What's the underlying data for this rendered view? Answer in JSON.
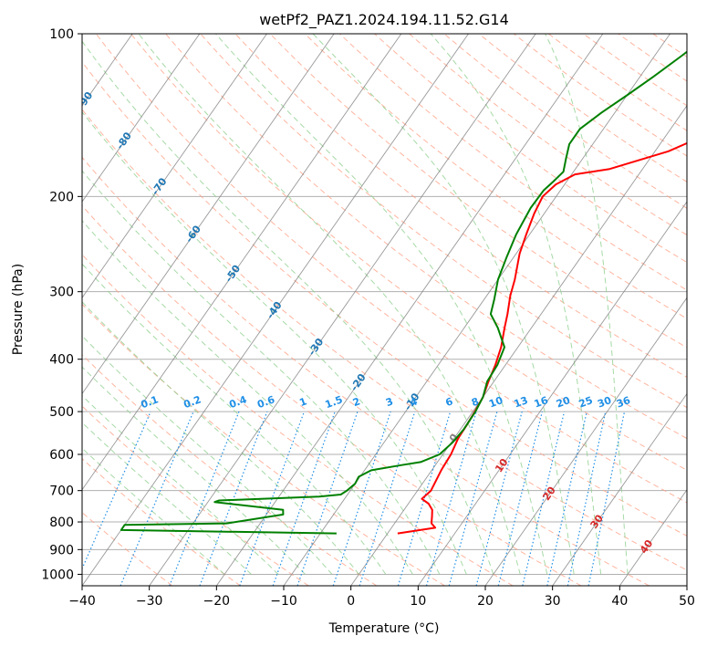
{
  "chart_data": {
    "type": "line",
    "title": "wetPf2_PAZ1.2024.194.11.52.G14",
    "xlabel": "Temperature (°C)",
    "ylabel": "Pressure (hPa)",
    "xlim": [
      -40,
      50
    ],
    "ylim": [
      1050,
      100
    ],
    "y_scale": "log",
    "x_ticks": [
      "−40",
      "−30",
      "−20",
      "−10",
      "0",
      "10",
      "20",
      "30",
      "40",
      "50"
    ],
    "y_ticks": [
      "100",
      "200",
      "300",
      "400",
      "500",
      "600",
      "700",
      "800",
      "900",
      "1000"
    ],
    "grid": true,
    "skew_background": true,
    "colors": {
      "temperature": "#ff0000",
      "dewpoint": "#008000",
      "isotherm": "#808080",
      "dry_adiabat": "#ff9c80",
      "moist_adiabat": "#90d090",
      "mixing_ratio": "#1f8fe6",
      "label_blue": "#1f77b4",
      "label_red": "#d62728"
    },
    "isotherm_labels": [
      "-100",
      "-90",
      "-80",
      "-70",
      "-60",
      "-50",
      "-40",
      "-30",
      "-20",
      "-10",
      "0",
      "10",
      "20",
      "30",
      "40"
    ],
    "mixing_ratio_labels": [
      "0.1",
      "0.2",
      "0.4",
      "0.6",
      "1",
      "1.5",
      "2",
      "3",
      "4",
      "6",
      "8",
      "10",
      "13",
      "16",
      "20",
      "25",
      "30",
      "36"
    ],
    "series": [
      {
        "key": "temperature",
        "points": [
          [
            1.5,
            840
          ],
          [
            6.5,
            820
          ],
          [
            5.5,
            805
          ],
          [
            4.8,
            780
          ],
          [
            4.2,
            760
          ],
          [
            3.0,
            740
          ],
          [
            1.5,
            725
          ],
          [
            2.0,
            700
          ],
          [
            1.8,
            680
          ],
          [
            1.4,
            640
          ],
          [
            1.2,
            600
          ],
          [
            0.6,
            560
          ],
          [
            0.5,
            530
          ],
          [
            0.3,
            500
          ],
          [
            0,
            470
          ],
          [
            -0.8,
            440
          ],
          [
            -1.5,
            410
          ],
          [
            -2.5,
            380
          ],
          [
            -4.0,
            350
          ],
          [
            -5.0,
            330
          ],
          [
            -6.5,
            305
          ],
          [
            -7.5,
            285
          ],
          [
            -9.5,
            255
          ],
          [
            -10.5,
            235
          ],
          [
            -11.5,
            215
          ],
          [
            -12.0,
            200
          ],
          [
            -11.3,
            190
          ],
          [
            -9.5,
            182
          ],
          [
            -5.0,
            178
          ],
          [
            2.0,
            165
          ],
          [
            8.0,
            148
          ],
          [
            11.5,
            135
          ],
          [
            14.5,
            120
          ],
          [
            16.0,
            110
          ],
          [
            16.5,
            105
          ],
          [
            16.5,
            100
          ]
        ]
      },
      {
        "key": "dewpoint",
        "points": [
          [
            -7.6,
            840
          ],
          [
            -40,
            828
          ],
          [
            -40,
            810
          ],
          [
            -25,
            805
          ],
          [
            -17.5,
            775
          ],
          [
            -18,
            760
          ],
          [
            -29,
            735
          ],
          [
            -28.5,
            730
          ],
          [
            -14,
            718
          ],
          [
            -11,
            712
          ],
          [
            -10.5,
            700
          ],
          [
            -10.0,
            680
          ],
          [
            -10.2,
            660
          ],
          [
            -9.0,
            642
          ],
          [
            -5.0,
            628
          ],
          [
            -2.5,
            620
          ],
          [
            -0.5,
            600
          ],
          [
            0.2,
            570
          ],
          [
            0.5,
            540
          ],
          [
            0.4,
            500
          ],
          [
            0.0,
            470
          ],
          [
            -1.0,
            440
          ],
          [
            -1.2,
            410
          ],
          [
            -2.0,
            380
          ],
          [
            -5.0,
            350
          ],
          [
            -7.5,
            330
          ],
          [
            -8.5,
            310
          ],
          [
            -10.0,
            285
          ],
          [
            -11.0,
            260
          ],
          [
            -12.0,
            235
          ],
          [
            -12.6,
            210
          ],
          [
            -12.5,
            195
          ],
          [
            -12.0,
            188
          ],
          [
            -11.5,
            180
          ],
          [
            -12.5,
            170
          ],
          [
            -13.5,
            160
          ],
          [
            -13.5,
            150
          ],
          [
            -12.0,
            140
          ],
          [
            -10.0,
            130
          ],
          [
            -8.0,
            120
          ],
          [
            -6.0,
            110
          ],
          [
            -4.0,
            100
          ]
        ]
      }
    ]
  }
}
